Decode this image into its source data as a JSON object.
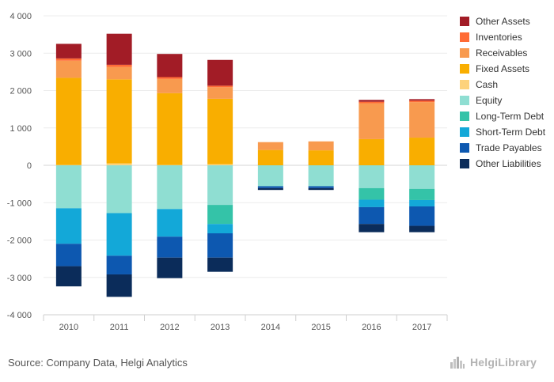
{
  "colors": {
    "Other Assets": "#a21c26",
    "Inventories": "#ff6b35",
    "Receivables": "#f89a4f",
    "Fixed Assets": "#f9ae00",
    "Cash": "#fdd27c",
    "Equity": "#8fded2",
    "Long-Term Debt": "#34c3a8",
    "Short-Term Debt": "#13a8d8",
    "Trade Payables": "#0d58b0",
    "Other Liabilities": "#0b2c5a"
  },
  "legend": [
    "Other Assets",
    "Inventories",
    "Receivables",
    "Fixed Assets",
    "Cash",
    "Equity",
    "Long-Term Debt",
    "Short-Term Debt",
    "Trade Payables",
    "Other Liabilities"
  ],
  "source": "Source: Company Data, Helgi Analytics",
  "logo": {
    "text": "HelgiLibrary",
    "icon": "city-skyline-icon"
  },
  "chart_data": {
    "type": "bar",
    "stacked": true,
    "categories": [
      "2010",
      "2011",
      "2012",
      "2013",
      "2014",
      "2015",
      "2016",
      "2017"
    ],
    "y_ticks": [
      "4 000",
      "3 000",
      "2 000",
      "1 000",
      "0",
      "-1 000",
      "-2 000",
      "-3 000",
      "-4 000"
    ],
    "ylim": [
      -4000,
      4000
    ],
    "grid": true,
    "legend_position": "right",
    "series": [
      {
        "name": "Cash",
        "values": [
          10,
          50,
          10,
          30,
          0,
          0,
          0,
          0
        ]
      },
      {
        "name": "Fixed Assets",
        "values": [
          2330,
          2250,
          1920,
          1750,
          410,
          400,
          700,
          740
        ]
      },
      {
        "name": "Receivables",
        "values": [
          460,
          330,
          380,
          310,
          210,
          240,
          960,
          950
        ]
      },
      {
        "name": "Inventories",
        "values": [
          60,
          60,
          50,
          40,
          0,
          0,
          40,
          40
        ]
      },
      {
        "name": "Other Assets",
        "values": [
          390,
          830,
          620,
          690,
          0,
          0,
          50,
          40
        ]
      },
      {
        "name": "Equity",
        "values": [
          -1150,
          -1280,
          -1170,
          -1060,
          -560,
          -560,
          -610,
          -630
        ]
      },
      {
        "name": "Long-Term Debt",
        "values": [
          0,
          0,
          0,
          -510,
          0,
          0,
          -310,
          -300
        ]
      },
      {
        "name": "Short-Term Debt",
        "values": [
          -950,
          -1140,
          -740,
          -250,
          0,
          0,
          -200,
          -170
        ]
      },
      {
        "name": "Trade Payables",
        "values": [
          -600,
          -500,
          -560,
          -650,
          -50,
          -50,
          -450,
          -520
        ]
      },
      {
        "name": "Other Liabilities",
        "values": [
          -540,
          -600,
          -550,
          -380,
          -50,
          -50,
          -220,
          -170
        ]
      }
    ]
  }
}
